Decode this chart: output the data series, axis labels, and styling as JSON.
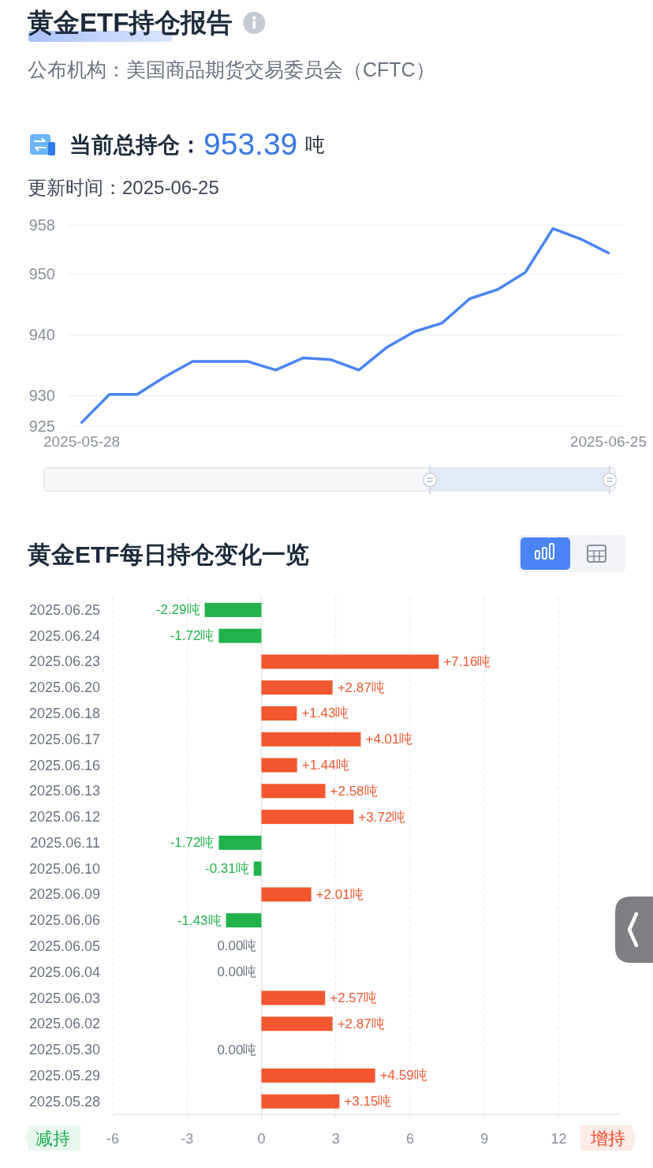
{
  "chart_data": [
    {
      "type": "line",
      "title": "黄金ETF持仓报告",
      "subtitle": "公布机构：美国商品期货交易委员会（CFTC）",
      "annotations": [
        "当前总持仓：",
        "953.39",
        "吨",
        "更新时间：2025-06-25"
      ],
      "categories": [
        "2025-05-28",
        null,
        null,
        null,
        null,
        null,
        null,
        null,
        null,
        null,
        null,
        null,
        null,
        null,
        null,
        null,
        null,
        null,
        null,
        "2025-06-25"
      ],
      "series": [
        {
          "color": "#4a84f5",
          "values": [
            925.6,
            930.2,
            930.2,
            933.1,
            935.6,
            935.6,
            935.6,
            934.2,
            936.2,
            935.9,
            934.2,
            937.9,
            940.5,
            941.9,
            945.9,
            947.4,
            950.2,
            957.4,
            955.7,
            953.4
          ]
        }
      ],
      "ylim": [
        925,
        958
      ],
      "yticks": [
        925,
        930,
        940,
        950,
        958
      ],
      "grid": "y",
      "marker": "none",
      "line_style": "solid"
    },
    {
      "type": "bar",
      "orientation": "horizontal",
      "title": "黄金ETF每日持仓变化一览",
      "annotations": [
        "减持",
        "增持"
      ],
      "categories": [
        "2025.06.25",
        "2025.06.24",
        "2025.06.23",
        "2025.06.20",
        "2025.06.18",
        "2025.06.17",
        "2025.06.16",
        "2025.06.13",
        "2025.06.12",
        "2025.06.11",
        "2025.06.10",
        "2025.06.09",
        "2025.06.06",
        "2025.06.05",
        "2025.06.04",
        "2025.06.03",
        "2025.06.02",
        "2025.05.30",
        "2025.05.29",
        "2025.05.28"
      ],
      "values": [
        -2.29,
        -1.72,
        7.16,
        2.87,
        1.43,
        4.01,
        1.44,
        2.58,
        3.72,
        -1.72,
        -0.31,
        2.01,
        -1.43,
        0,
        0,
        2.57,
        2.87,
        0,
        4.59,
        3.15
      ],
      "colors": [
        "#22b24c",
        "#22b24c",
        "#f2572f",
        "#f2572f",
        "#f2572f",
        "#f2572f",
        "#f2572f",
        "#f2572f",
        "#f2572f",
        "#22b24c",
        "#22b24c",
        "#f2572f",
        "#22b24c",
        "#6b7280",
        "#6b7280",
        "#f2572f",
        "#f2572f",
        "#6b7280",
        "#f2572f",
        "#f2572f"
      ],
      "value_labels": [
        "-2.29吨",
        "-1.72吨",
        "+7.16吨",
        "+2.87吨",
        "+1.43吨",
        "+4.01吨",
        "+1.44吨",
        "+2.58吨",
        "+3.72吨",
        "-1.72吨",
        "-0.31吨",
        "+2.01吨",
        "-1.43吨",
        "0.00吨",
        "0.00吨",
        "+2.57吨",
        "+2.87吨",
        "0.00吨",
        "+4.59吨",
        "+3.15吨"
      ],
      "xlim": [
        -6,
        14.5
      ],
      "xticks": [
        -6,
        -3,
        0,
        3,
        6,
        9,
        12
      ],
      "grid": "x"
    }
  ]
}
